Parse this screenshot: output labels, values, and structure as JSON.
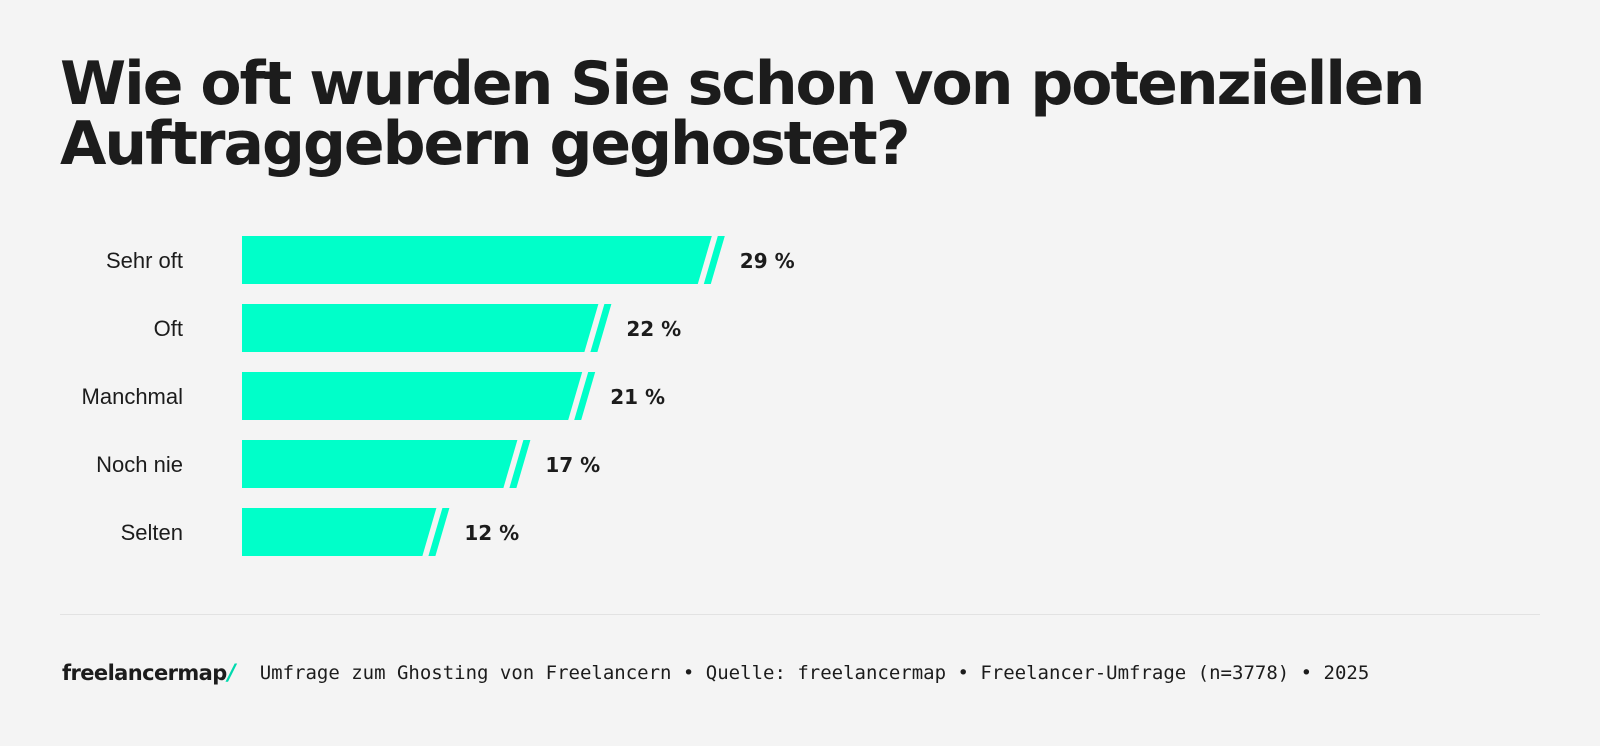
{
  "title": "Wie oft wurden Sie schon von potenziellen Auftraggebern geghostet?",
  "colors": {
    "bar": "#00ffc9",
    "background": "#f4f4f4",
    "text": "#1c1c1c",
    "brand_accent": "#00d9ae"
  },
  "chart_data": {
    "type": "bar",
    "orientation": "horizontal",
    "title": "Wie oft wurden Sie schon von potenziellen Auftraggebern geghostet?",
    "categories": [
      "Sehr oft",
      "Oft",
      "Manchmal",
      "Noch nie",
      "Selten"
    ],
    "values": [
      29,
      22,
      21,
      17,
      12
    ],
    "value_labels": [
      "29 %",
      "22 %",
      "21 %",
      "17 %",
      "12 %"
    ],
    "unit": "%",
    "xlim": [
      0,
      100
    ],
    "xlabel": "",
    "ylabel": "",
    "grid": false,
    "legend": "none"
  },
  "footer": {
    "brand": "freelancermap",
    "brand_slash": "/",
    "source": "Umfrage zum Ghosting von Freelancern • Quelle: freelancermap • Freelancer-Umfrage (n=3778) • 2025"
  }
}
